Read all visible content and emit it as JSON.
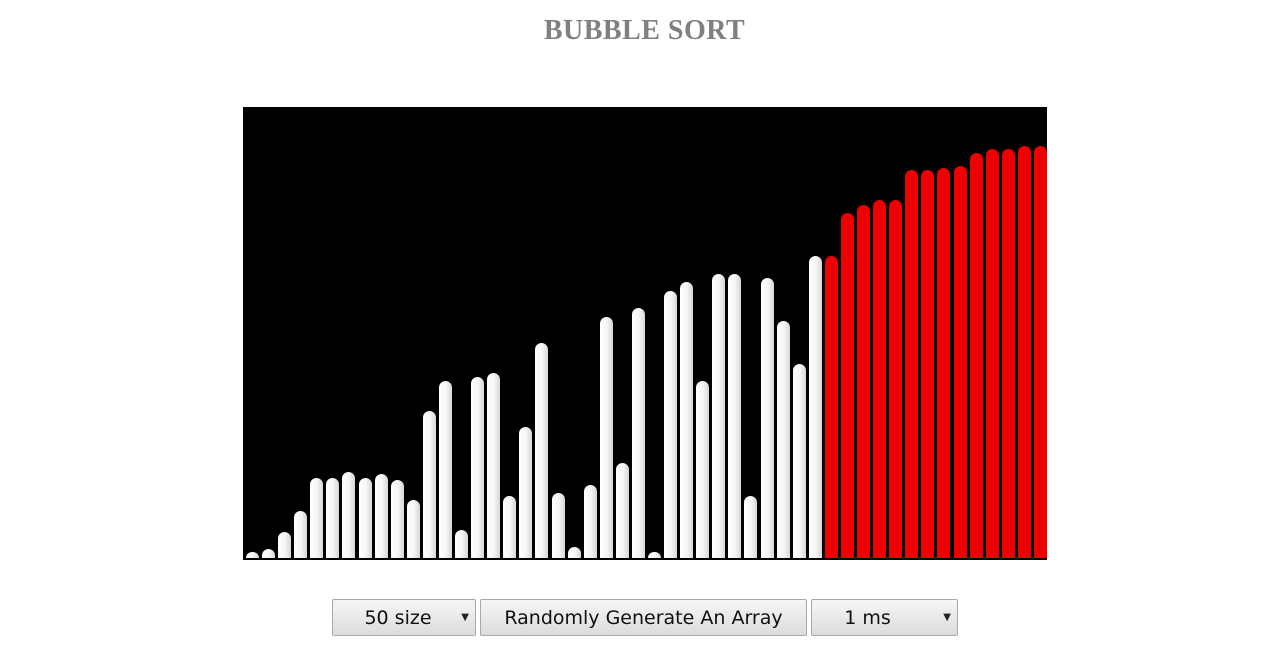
{
  "title": "BUBBLE SORT",
  "visualizer": {
    "colors": {
      "background": "#000000",
      "unsorted": "#ffffff",
      "sorted": "#ef0000"
    },
    "max_value": 100,
    "bars": [
      {
        "value": 1,
        "state": "unsorted"
      },
      {
        "value": 2,
        "state": "unsorted"
      },
      {
        "value": 6,
        "state": "unsorted"
      },
      {
        "value": 11,
        "state": "unsorted"
      },
      {
        "value": 18.5,
        "state": "unsorted"
      },
      {
        "value": 18.5,
        "state": "unsorted"
      },
      {
        "value": 20,
        "state": "unsorted"
      },
      {
        "value": 18.5,
        "state": "unsorted"
      },
      {
        "value": 19.5,
        "state": "unsorted"
      },
      {
        "value": 18,
        "state": "unsorted"
      },
      {
        "value": 13.5,
        "state": "unsorted"
      },
      {
        "value": 34,
        "state": "unsorted"
      },
      {
        "value": 41,
        "state": "unsorted"
      },
      {
        "value": 6.5,
        "state": "unsorted"
      },
      {
        "value": 42,
        "state": "unsorted"
      },
      {
        "value": 43,
        "state": "unsorted"
      },
      {
        "value": 14.5,
        "state": "unsorted"
      },
      {
        "value": 30.5,
        "state": "unsorted"
      },
      {
        "value": 50,
        "state": "unsorted"
      },
      {
        "value": 15,
        "state": "unsorted"
      },
      {
        "value": 2.5,
        "state": "unsorted"
      },
      {
        "value": 17,
        "state": "unsorted"
      },
      {
        "value": 56,
        "state": "unsorted"
      },
      {
        "value": 22,
        "state": "unsorted"
      },
      {
        "value": 58,
        "state": "unsorted"
      },
      {
        "value": 1.5,
        "state": "unsorted"
      },
      {
        "value": 62,
        "state": "unsorted"
      },
      {
        "value": 64,
        "state": "unsorted"
      },
      {
        "value": 41,
        "state": "unsorted"
      },
      {
        "value": 66,
        "state": "unsorted"
      },
      {
        "value": 66,
        "state": "unsorted"
      },
      {
        "value": 14.5,
        "state": "unsorted"
      },
      {
        "value": 65,
        "state": "unsorted"
      },
      {
        "value": 55,
        "state": "unsorted"
      },
      {
        "value": 45,
        "state": "unsorted"
      },
      {
        "value": 70,
        "state": "unsorted"
      },
      {
        "value": 70,
        "state": "sorted"
      },
      {
        "value": 80,
        "state": "sorted"
      },
      {
        "value": 82,
        "state": "sorted"
      },
      {
        "value": 83,
        "state": "sorted"
      },
      {
        "value": 83,
        "state": "sorted"
      },
      {
        "value": 90,
        "state": "sorted"
      },
      {
        "value": 90,
        "state": "sorted"
      },
      {
        "value": 90.5,
        "state": "sorted"
      },
      {
        "value": 91,
        "state": "sorted"
      },
      {
        "value": 94,
        "state": "sorted"
      },
      {
        "value": 95,
        "state": "sorted"
      },
      {
        "value": 95,
        "state": "sorted"
      },
      {
        "value": 95.5,
        "state": "sorted"
      },
      {
        "value": 95.5,
        "state": "sorted"
      }
    ]
  },
  "controls": {
    "size_select": {
      "selected": "50 size",
      "icon": "dropdown-arrow-icon"
    },
    "generate_button": "Randomly Generate An Array",
    "speed_select": {
      "selected": "1 ms",
      "icon": "dropdown-arrow-icon"
    }
  }
}
